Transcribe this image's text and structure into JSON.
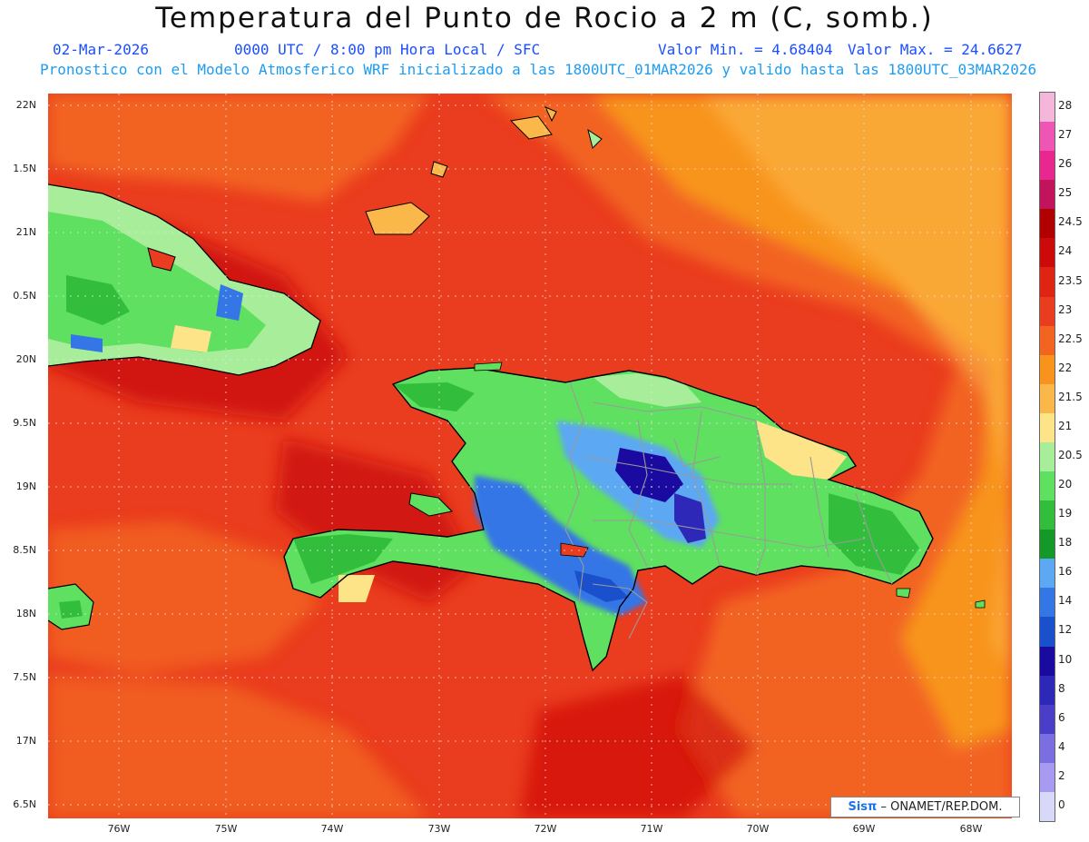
{
  "header": {
    "title": "Temperatura del Punto de Rocio a 2 m (C, somb.)",
    "date": "02-Mar-2026",
    "time_info": "0000 UTC / 8:00 pm Hora Local / SFC",
    "min_label": "Valor Min. = 4.68404",
    "max_label": "Valor Max. = 24.6627",
    "model_info": "Pronostico con el Modelo Atmosferico WRF inicializado a las 1800UTC_01MAR2026 y valido hasta las  1800UTC_03MAR2026"
  },
  "axes": {
    "lat_labels": [
      "22N",
      "1.5N",
      "21N",
      "0.5N",
      "20N",
      "9.5N",
      "19N",
      "8.5N",
      "18N",
      "7.5N",
      "17N",
      "6.5N"
    ],
    "lon_labels": [
      "76W",
      "75W",
      "74W",
      "73W",
      "72W",
      "71W",
      "70W",
      "69W",
      "68W"
    ]
  },
  "legend": {
    "levels": [
      "28",
      "27",
      "26",
      "25",
      "24.5",
      "24",
      "23.5",
      "23",
      "22.5",
      "22",
      "21.5",
      "21",
      "20.5",
      "20",
      "19",
      "18",
      "16",
      "14",
      "12",
      "10",
      "8",
      "6",
      "4",
      "2",
      "0"
    ],
    "colors": [
      "#f5b6dc",
      "#ef55b4",
      "#e8288e",
      "#c2145c",
      "#b00000",
      "#cc0a0a",
      "#e02414",
      "#ea3c1e",
      "#f26420",
      "#f8941e",
      "#fbb84a",
      "#fde488",
      "#a8ee9a",
      "#5fe060",
      "#32be3c",
      "#149828",
      "#5ca8f2",
      "#3476e6",
      "#1a50cc",
      "#1a0aa0",
      "#2e28b8",
      "#4a3ec8",
      "#7a6ee0",
      "#a89af0",
      "#d8d8f8"
    ]
  },
  "credit": {
    "logo": "Sisπ",
    "org": "– ONAMET/REP.DOM."
  }
}
